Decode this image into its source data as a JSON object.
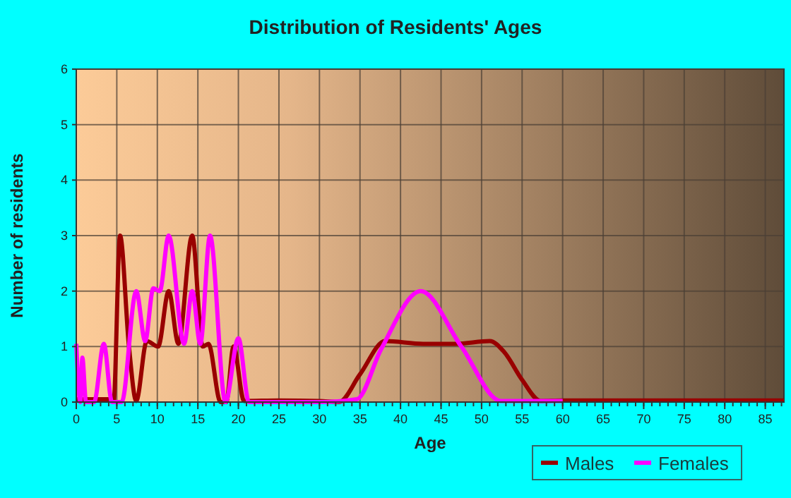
{
  "chart_data": {
    "type": "line",
    "title": "Distribution of Residents' Ages",
    "xlabel": "Age",
    "ylabel": "Number of residents",
    "xlim": [
      0,
      87.3
    ],
    "xticks": [
      0,
      5,
      10,
      15,
      20,
      25,
      30,
      35,
      40,
      45,
      50,
      55,
      60,
      65,
      70,
      75,
      80,
      85
    ],
    "ylim": [
      0,
      6
    ],
    "yticks": [
      0,
      1,
      2,
      3,
      4,
      5,
      6
    ],
    "grid": true,
    "legend": "bottom",
    "marker": "none",
    "line_style": "solid",
    "series": [
      {
        "name": "Males",
        "color": "#990000",
        "x": [
          0,
          4,
          4.6,
          5.4,
          6.5,
          7.4,
          8.7,
          10.1,
          11.4,
          12.6,
          14.3,
          15.6,
          16.3,
          17.8,
          18.5,
          19.4,
          20.7,
          25,
          30,
          32.4,
          35,
          38.1,
          42.8,
          46.8,
          51,
          52.8,
          55,
          57.3,
          60,
          70,
          87.3
        ],
        "values": [
          0.05,
          0.05,
          0,
          3,
          1,
          0.02,
          1.1,
          1,
          2,
          1.05,
          3,
          1,
          1.05,
          0,
          0,
          1,
          0.02,
          0.03,
          0.02,
          0,
          0.5,
          1.1,
          1.05,
          1.05,
          1.1,
          0.9,
          0.4,
          0.02,
          0.03,
          0.03,
          0.03
        ]
      },
      {
        "name": "Females",
        "color": "#ff00ff",
        "x": [
          0,
          0.5,
          0.75,
          1.2,
          2.2,
          3.4,
          4.4,
          5.6,
          7.4,
          8.5,
          9.5,
          10.3,
          11.4,
          13.3,
          14.3,
          15.3,
          16.5,
          18.4,
          20,
          21.3,
          30,
          34.6,
          37.6,
          42.5,
          47.5,
          52.4,
          60
        ],
        "values": [
          1.05,
          0,
          0.8,
          0,
          0,
          1.05,
          0,
          0,
          2,
          1.1,
          2.05,
          2,
          3,
          1.05,
          2,
          1.05,
          3,
          0,
          1.15,
          0,
          0,
          0.05,
          0.95,
          2,
          1,
          0.02,
          0.02
        ]
      }
    ]
  }
}
